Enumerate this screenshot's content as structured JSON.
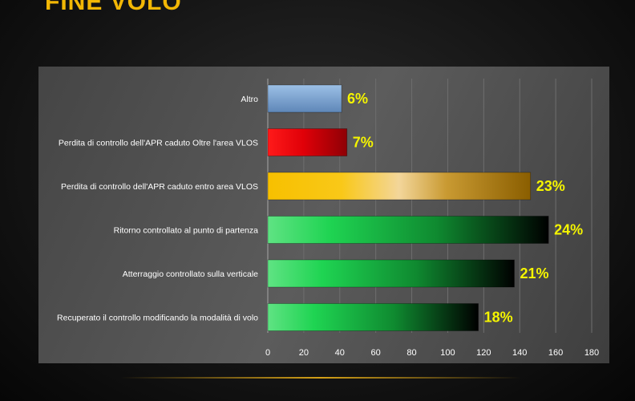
{
  "slide": {
    "title": "FINE VOLO"
  },
  "colors": {
    "title": "#f2b705",
    "data_label": "#f5f500",
    "bar_blue": "#7ea6d3",
    "bar_red": "#e8000a",
    "bar_gold": "#f6c300",
    "bar_green": "#27d957"
  },
  "chart_data": {
    "type": "bar",
    "orientation": "horizontal",
    "categories": [
      "Altro",
      "Perdita di controllo dell'APR caduto Oltre l'area VLOS",
      "Perdita di controllo dell'APR caduto entro area VLOS",
      "Ritorno controllato al punto di partenza",
      "Atterraggio controllato sulla verticale",
      "Recuperato il controllo modificando la modalità di volo"
    ],
    "values": [
      41,
      44,
      146,
      156,
      137,
      117
    ],
    "data_labels": [
      "6%",
      "7%",
      "23%",
      "24%",
      "21%",
      "18%"
    ],
    "bar_colors": [
      "blue",
      "red",
      "gold",
      "green",
      "green",
      "green"
    ],
    "xlim": [
      0,
      180
    ],
    "xticks": [
      "0",
      "20",
      "40",
      "60",
      "80",
      "100",
      "120",
      "140",
      "160",
      "180"
    ],
    "grid": true,
    "legend": false,
    "title": "",
    "xlabel": "",
    "ylabel": ""
  }
}
